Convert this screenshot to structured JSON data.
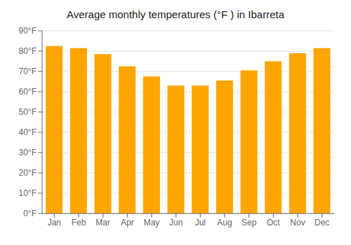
{
  "chart_data": {
    "type": "bar",
    "title": "Average monthly temperatures (°F ) in Ibarreta",
    "categories": [
      "Jan",
      "Feb",
      "Mar",
      "Apr",
      "May",
      "Jun",
      "Jul",
      "Aug",
      "Sep",
      "Oct",
      "Nov",
      "Dec"
    ],
    "values": [
      82.5,
      81.5,
      78.5,
      72.5,
      67.5,
      63,
      63,
      65.5,
      70.5,
      75,
      79,
      81.5
    ],
    "color": "#FFA500",
    "ylim": [
      0,
      90
    ],
    "yticks": [
      {
        "value": 0,
        "label": "0°F"
      },
      {
        "value": 10,
        "label": "10°F"
      },
      {
        "value": 20,
        "label": "20°F"
      },
      {
        "value": 30,
        "label": "30°F"
      },
      {
        "value": 40,
        "label": "40°F"
      },
      {
        "value": 50,
        "label": "50°F"
      },
      {
        "value": 60,
        "label": "60°F"
      },
      {
        "value": 70,
        "label": "70°F"
      },
      {
        "value": 80,
        "label": "80°F"
      },
      {
        "value": 90,
        "label": "90°F"
      }
    ],
    "grid": true
  }
}
